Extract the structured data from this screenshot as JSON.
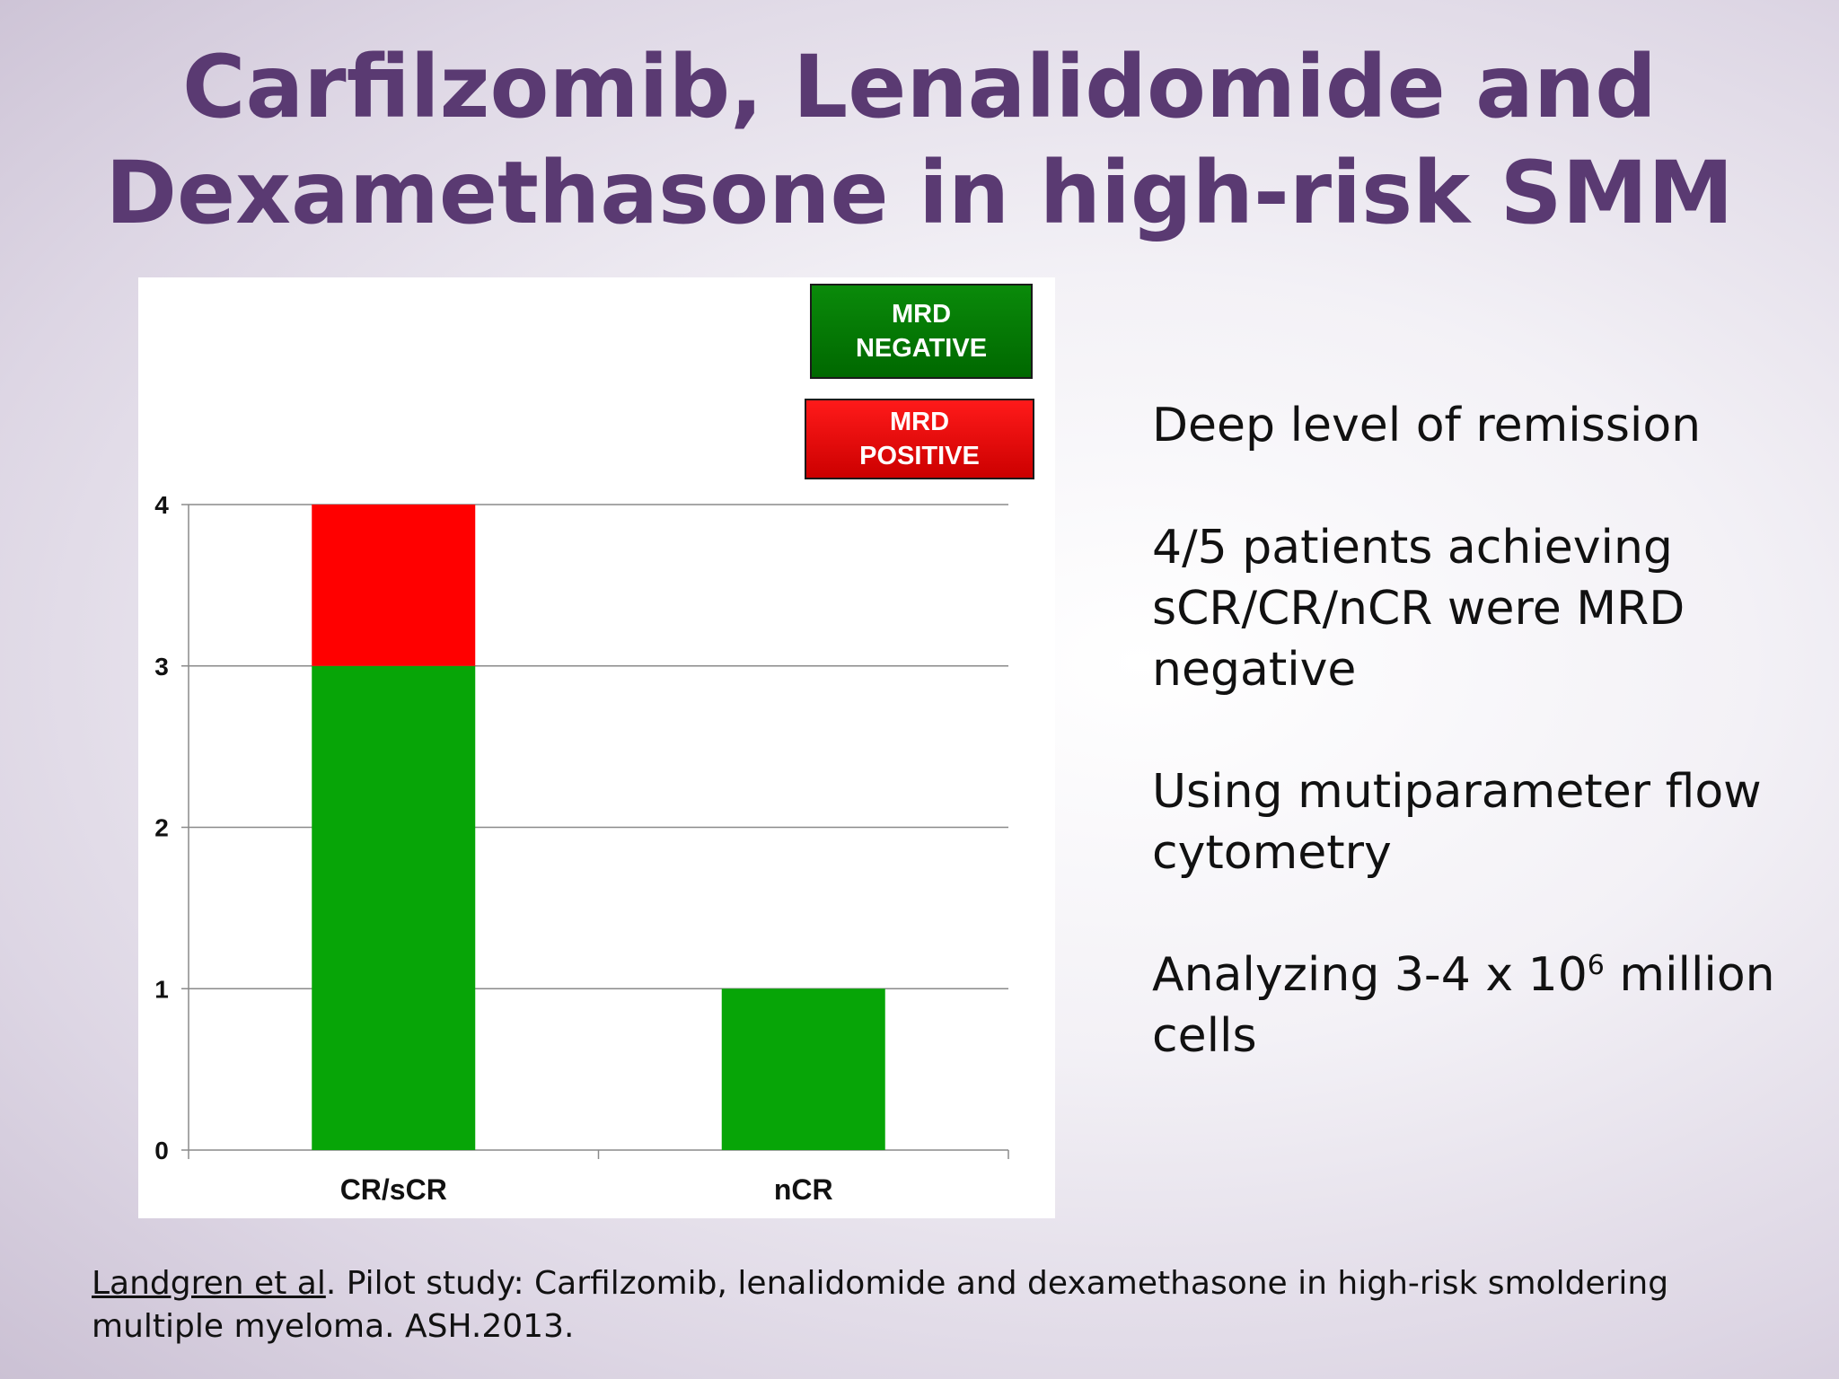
{
  "slide": {
    "title_line1": "Carfilzomib, Lenalidomide and",
    "title_line2": "Dexamethasone in high-risk SMM"
  },
  "bullets": {
    "b1": "Deep level of remission",
    "b2": "4/5 patients achieving sCR/CR/nCR were MRD negative",
    "b3": "Using mutiparameter flow cytometry",
    "b4_pre": "Analyzing 3-4 x 10",
    "b4_sup": "6",
    "b4_post": " million cells"
  },
  "citation": {
    "author": "Landgren et al",
    "text": ". Pilot study: Carfilzomib, lenalidomide and dexamethasone in high-risk smoldering multiple myeloma. ASH.2013."
  },
  "chart_data": {
    "type": "bar",
    "stacked": true,
    "categories": [
      "CR/sCR",
      "nCR"
    ],
    "series": [
      {
        "name": "MRD NEGATIVE",
        "values": [
          3,
          1
        ],
        "color": "#07a507"
      },
      {
        "name": "MRD POSITIVE",
        "values": [
          1,
          0
        ],
        "color": "#ff0000"
      }
    ],
    "yticks": [
      "0",
      "1",
      "2",
      "3",
      "4"
    ],
    "ylim": [
      0,
      4
    ],
    "grid": true,
    "legend_placement": "top-right",
    "legend": {
      "negative_line1": "MRD",
      "negative_line2": "NEGATIVE",
      "positive_line1": "MRD",
      "positive_line2": "POSITIVE"
    }
  }
}
